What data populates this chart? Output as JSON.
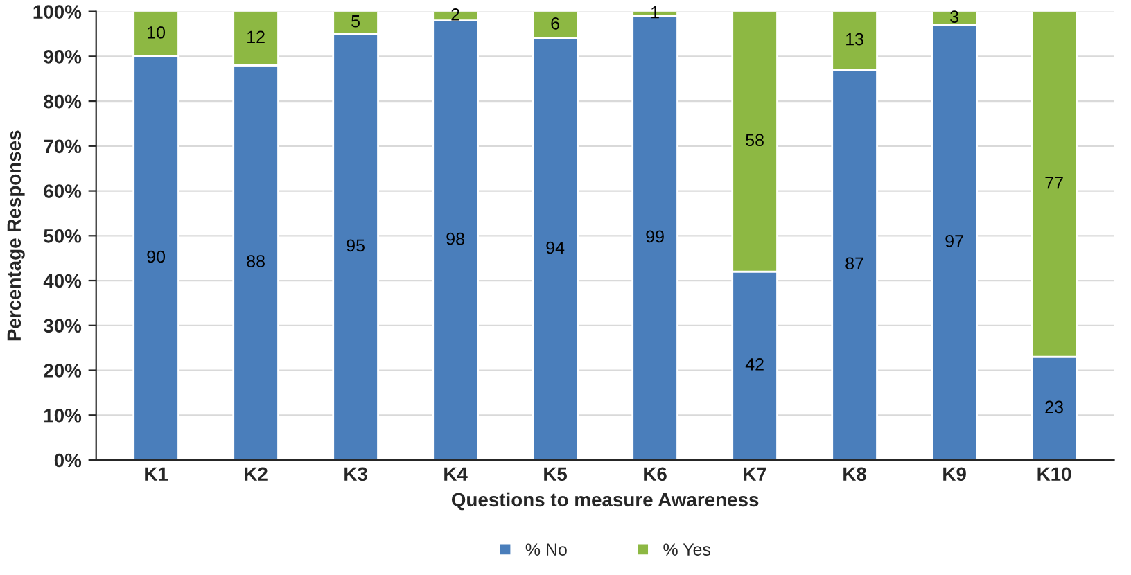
{
  "chart_data": {
    "type": "bar",
    "stacked": true,
    "xlabel": "Questions to measure Awareness",
    "ylabel": "Percentage Responses",
    "categories": [
      "K1",
      "K2",
      "K3",
      "K4",
      "K5",
      "K6",
      "K7",
      "K8",
      "K9",
      "K10"
    ],
    "series": [
      {
        "name": "% No",
        "color": "#4a7ebb",
        "values": [
          90,
          88,
          95,
          98,
          94,
          99,
          42,
          87,
          97,
          23
        ]
      },
      {
        "name": "% Yes",
        "color": "#8db843",
        "values": [
          10,
          12,
          5,
          2,
          6,
          1,
          58,
          13,
          3,
          77
        ]
      }
    ],
    "ylim": [
      0,
      100
    ],
    "yticks": [
      {
        "value": 0,
        "label": "0%"
      },
      {
        "value": 10,
        "label": "10%"
      },
      {
        "value": 20,
        "label": "20%"
      },
      {
        "value": 30,
        "label": "30%"
      },
      {
        "value": 40,
        "label": "40%"
      },
      {
        "value": 50,
        "label": "50%"
      },
      {
        "value": 60,
        "label": "60%"
      },
      {
        "value": 70,
        "label": "70%"
      },
      {
        "value": 80,
        "label": "80%"
      },
      {
        "value": 90,
        "label": "90%"
      },
      {
        "value": 100,
        "label": "100%"
      }
    ],
    "data_labels": true,
    "grid": "y",
    "legend": "bottom"
  }
}
